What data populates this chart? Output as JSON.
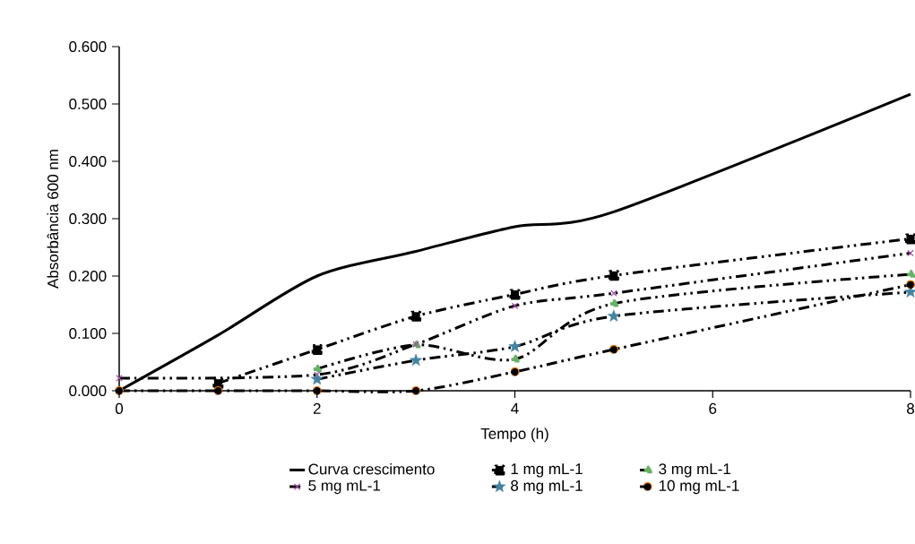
{
  "chart_data": {
    "type": "line",
    "xlabel": "Tempo (h)",
    "ylabel": "Absorbância 600 nm",
    "x": [
      0,
      1,
      2,
      3,
      4,
      5,
      8
    ],
    "series": [
      {
        "name": "Curva crescimento",
        "color": "#000000",
        "line_style": "solid",
        "marker": "none",
        "values": [
          0.0,
          0.097,
          0.2,
          0.243,
          0.286,
          0.312,
          0.517
        ]
      },
      {
        "name": "1 mg mL-1",
        "color": "#000000",
        "line_style": "dashed",
        "marker": "square",
        "values": [
          null,
          0.013,
          0.072,
          0.13,
          0.168,
          0.201,
          0.265
        ]
      },
      {
        "name": "3 mg mL-1",
        "color": "#000000",
        "line_style": "dashed",
        "marker": "triangle",
        "values": [
          null,
          null,
          0.038,
          0.08,
          0.055,
          0.152,
          0.203
        ]
      },
      {
        "name": "5 mg mL-1",
        "color": "#000000",
        "line_style": "dashed",
        "marker": "cross",
        "values": [
          0.022,
          null,
          0.028,
          0.081,
          0.148,
          0.17,
          0.24
        ]
      },
      {
        "name": "8 mg mL-1",
        "color": "#000000",
        "line_style": "dashed",
        "marker": "star",
        "values": [
          null,
          null,
          0.02,
          0.053,
          0.077,
          0.13,
          0.172
        ]
      },
      {
        "name": "10 mg mL-1",
        "color": "#000000",
        "line_style": "dashed",
        "marker": "circle",
        "values": [
          0.0,
          0.0,
          0.0,
          0.0,
          0.033,
          0.072,
          0.185
        ]
      }
    ],
    "xlim": [
      0,
      8
    ],
    "xticks": [
      0,
      2,
      4,
      6,
      8
    ],
    "ylim": [
      0,
      0.6
    ],
    "yticks": [
      {
        "value": 0,
        "label": "0.000"
      },
      {
        "value": 0.1,
        "label": "0.100"
      },
      {
        "value": 0.2,
        "label": "0.200"
      },
      {
        "value": 0.3,
        "label": "0.300"
      },
      {
        "value": 0.4,
        "label": "0.400"
      },
      {
        "value": 0.5,
        "label": "0.500"
      },
      {
        "value": 0.6,
        "label": "0.600"
      }
    ],
    "grid": false,
    "legend": "bottom"
  }
}
